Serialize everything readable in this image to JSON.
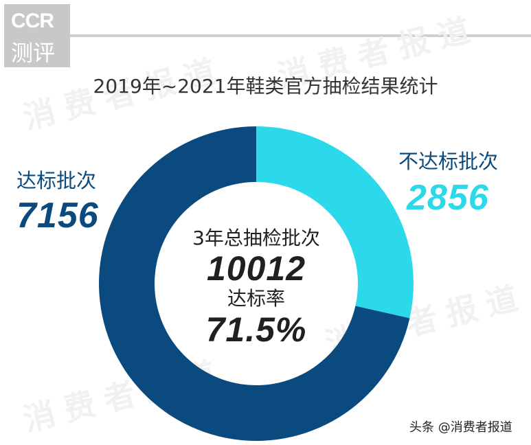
{
  "logo": {
    "line1": "CCR",
    "line2": "测评"
  },
  "watermark": "消费者报道",
  "title": "2019年~2021年鞋类官方抽检结果统计",
  "segments": {
    "pass": {
      "label": "达标批次",
      "value": "7156",
      "color": "#0b4a7e"
    },
    "fail": {
      "label": "不达标批次",
      "value": "2856",
      "color": "#2bd9ea"
    }
  },
  "center": {
    "total_label": "3年总抽检批次",
    "total_value": "10012",
    "rate_label": "达标率",
    "rate_value": "71.5%"
  },
  "credit": "头条 @消费者报道",
  "chart_data": {
    "type": "pie",
    "subtype": "donut",
    "title": "2019年~2021年鞋类官方抽检结果统计",
    "categories": [
      "不达标批次",
      "达标批次"
    ],
    "values": [
      2856,
      7156
    ],
    "colors": [
      "#2bd9ea",
      "#0b4a7e"
    ],
    "total": 10012,
    "center_annotations": [
      "3年总抽检批次",
      "10012",
      "达标率",
      "71.5%"
    ],
    "start_angle": "12 o'clock, clockwise",
    "legend": "direct labels (left: 达标批次 7156; right: 不达标批次 2856)"
  }
}
